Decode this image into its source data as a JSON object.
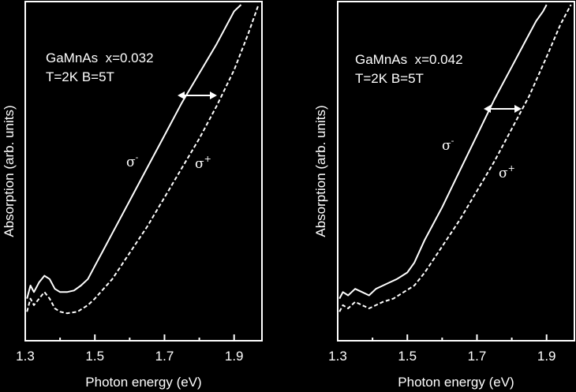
{
  "chart_data": [
    {
      "type": "line",
      "xlabel": "Photon energy (eV)",
      "ylabel": "Absorption (arb. units)",
      "xlim": [
        1.3,
        1.98
      ],
      "ylim": [
        0,
        1
      ],
      "x_ticks": [
        "1.3",
        "1.5",
        "1.7",
        "1.9"
      ],
      "y_ticks": "none",
      "grid": false,
      "annotations": {
        "material": "GaMnAs  x=0.032",
        "conditions": "T=2K B=5T",
        "arrow": "double-headed arrow between the two curves near 1.76–1.86 eV"
      },
      "series": [
        {
          "name": "σ-",
          "style": "solid",
          "color": "#ffffff",
          "points": [
            [
              1.305,
              0.1
            ],
            [
              1.315,
              0.14
            ],
            [
              1.325,
              0.12
            ],
            [
              1.34,
              0.15
            ],
            [
              1.355,
              0.17
            ],
            [
              1.37,
              0.16
            ],
            [
              1.385,
              0.13
            ],
            [
              1.4,
              0.12
            ],
            [
              1.42,
              0.12
            ],
            [
              1.44,
              0.125
            ],
            [
              1.46,
              0.14
            ],
            [
              1.48,
              0.16
            ],
            [
              1.5,
              0.2
            ],
            [
              1.52,
              0.24
            ],
            [
              1.55,
              0.3
            ],
            [
              1.6,
              0.4
            ],
            [
              1.65,
              0.5
            ],
            [
              1.7,
              0.6
            ],
            [
              1.75,
              0.7
            ],
            [
              1.8,
              0.79
            ],
            [
              1.85,
              0.88
            ],
            [
              1.88,
              0.94
            ],
            [
              1.9,
              0.98
            ],
            [
              1.92,
              1.0
            ]
          ]
        },
        {
          "name": "σ+",
          "style": "dashed",
          "color": "#ffffff",
          "points": [
            [
              1.305,
              0.06
            ],
            [
              1.315,
              0.1
            ],
            [
              1.325,
              0.08
            ],
            [
              1.34,
              0.1
            ],
            [
              1.355,
              0.12
            ],
            [
              1.37,
              0.1
            ],
            [
              1.385,
              0.07
            ],
            [
              1.4,
              0.06
            ],
            [
              1.42,
              0.055
            ],
            [
              1.45,
              0.06
            ],
            [
              1.48,
              0.08
            ],
            [
              1.5,
              0.1
            ],
            [
              1.55,
              0.16
            ],
            [
              1.6,
              0.24
            ],
            [
              1.65,
              0.32
            ],
            [
              1.7,
              0.41
            ],
            [
              1.75,
              0.5
            ],
            [
              1.8,
              0.59
            ],
            [
              1.85,
              0.69
            ],
            [
              1.9,
              0.8
            ],
            [
              1.94,
              0.91
            ],
            [
              1.97,
              1.0
            ]
          ]
        }
      ]
    },
    {
      "type": "line",
      "xlabel": "Photon energy (eV)",
      "ylabel": "Absorption (arb. units)",
      "xlim": [
        1.3,
        1.98
      ],
      "ylim": [
        0,
        1
      ],
      "x_ticks": [
        "1.3",
        "1.5",
        "1.7",
        "1.9"
      ],
      "y_ticks": "none",
      "grid": false,
      "annotations": {
        "material": "GaMnAs  x=0.042",
        "conditions": "T=2K B=5T",
        "arrow": "double-headed arrow between the two curves near 1.73–1.82 eV"
      },
      "series": [
        {
          "name": "σ-",
          "style": "solid",
          "color": "#ffffff",
          "points": [
            [
              1.305,
              0.1
            ],
            [
              1.315,
              0.12
            ],
            [
              1.33,
              0.11
            ],
            [
              1.35,
              0.13
            ],
            [
              1.37,
              0.12
            ],
            [
              1.39,
              0.11
            ],
            [
              1.41,
              0.13
            ],
            [
              1.43,
              0.14
            ],
            [
              1.45,
              0.15
            ],
            [
              1.47,
              0.16
            ],
            [
              1.5,
              0.18
            ],
            [
              1.52,
              0.21
            ],
            [
              1.55,
              0.28
            ],
            [
              1.6,
              0.38
            ],
            [
              1.65,
              0.49
            ],
            [
              1.7,
              0.6
            ],
            [
              1.75,
              0.71
            ],
            [
              1.8,
              0.81
            ],
            [
              1.84,
              0.89
            ],
            [
              1.87,
              0.95
            ],
            [
              1.89,
              0.98
            ],
            [
              1.9,
              1.0
            ]
          ]
        },
        {
          "name": "σ+",
          "style": "dashed",
          "color": "#ffffff",
          "points": [
            [
              1.305,
              0.06
            ],
            [
              1.315,
              0.08
            ],
            [
              1.33,
              0.07
            ],
            [
              1.35,
              0.09
            ],
            [
              1.37,
              0.08
            ],
            [
              1.39,
              0.07
            ],
            [
              1.41,
              0.08
            ],
            [
              1.43,
              0.09
            ],
            [
              1.46,
              0.1
            ],
            [
              1.49,
              0.12
            ],
            [
              1.52,
              0.14
            ],
            [
              1.55,
              0.18
            ],
            [
              1.6,
              0.26
            ],
            [
              1.65,
              0.34
            ],
            [
              1.7,
              0.43
            ],
            [
              1.75,
              0.52
            ],
            [
              1.8,
              0.62
            ],
            [
              1.85,
              0.72
            ],
            [
              1.9,
              0.84
            ],
            [
              1.94,
              0.94
            ],
            [
              1.97,
              1.0
            ]
          ]
        }
      ]
    }
  ]
}
